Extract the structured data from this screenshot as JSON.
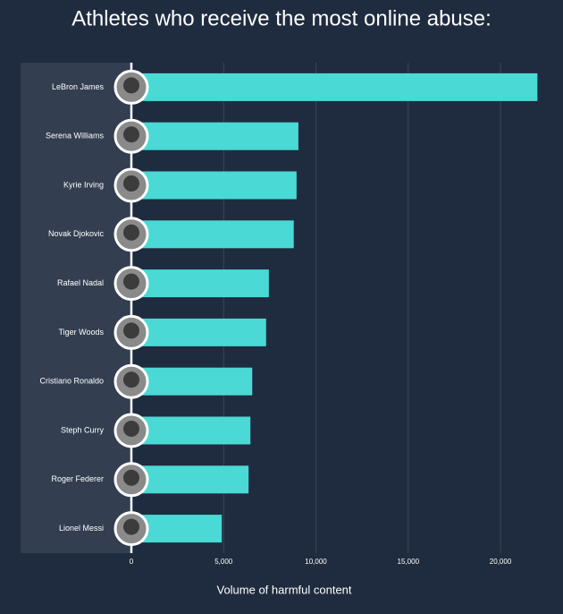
{
  "chart_data": {
    "type": "barh",
    "title": "Athletes who receive the most online abuse:",
    "categories": [
      "LeBron James",
      "Serena Williams",
      "Kyrie Irving",
      "Novak Djokovic",
      "Rafael Nadal",
      "Tiger Woods",
      "Cristiano Ronaldo",
      "Steph Curry",
      "Roger Federer",
      "Lionel Messi"
    ],
    "values": [
      22000,
      9050,
      8950,
      8800,
      7450,
      7300,
      6550,
      6450,
      6350,
      4900
    ],
    "color": "#4ad9d5",
    "xlabel": "Volume of harmful content",
    "xlim": [
      0,
      23000
    ],
    "xticks": [
      0,
      {
        "value": 5000,
        "label": "5,000"
      },
      {
        "value": 10000,
        "label": "10,000"
      },
      {
        "value": 15000,
        "label": "15,000"
      },
      {
        "value": 20000,
        "label": "20,000"
      }
    ],
    "grid": true
  }
}
